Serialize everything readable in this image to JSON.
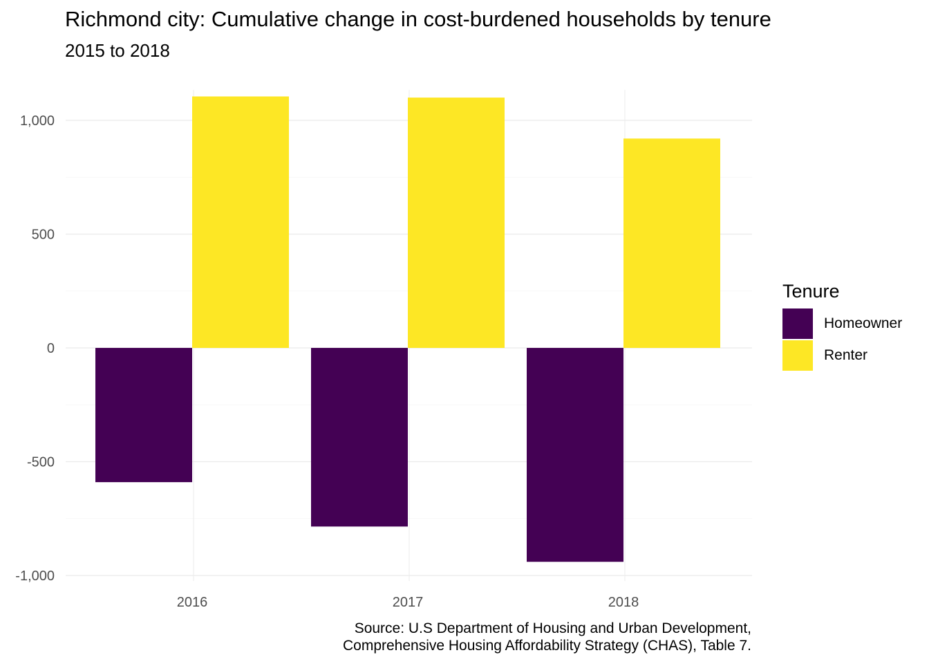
{
  "chart_data": {
    "type": "bar",
    "title": "Richmond city: Cumulative change in cost-burdened households by tenure",
    "subtitle": "2015 to 2018",
    "xlabel": "",
    "ylabel": "",
    "categories": [
      "2016",
      "2017",
      "2018"
    ],
    "series": [
      {
        "name": "Homeowner",
        "color": "#440154",
        "values": [
          -590,
          -785,
          -940
        ]
      },
      {
        "name": "Renter",
        "color": "#FDE725",
        "values": [
          1105,
          1100,
          920
        ]
      }
    ],
    "ylim": [
      -1000,
      1110
    ],
    "yticks": [
      -1000,
      -500,
      0,
      500,
      1000
    ],
    "ytick_labels": [
      "-1,000",
      "-500",
      "0",
      "500",
      "1,000"
    ],
    "grid": true,
    "legend": {
      "title": "Tenure",
      "position": "right"
    },
    "caption": [
      "Source: U.S Department of Housing and Urban Development,",
      "Comprehensive Housing Affordability Strategy (CHAS), Table 7."
    ]
  }
}
